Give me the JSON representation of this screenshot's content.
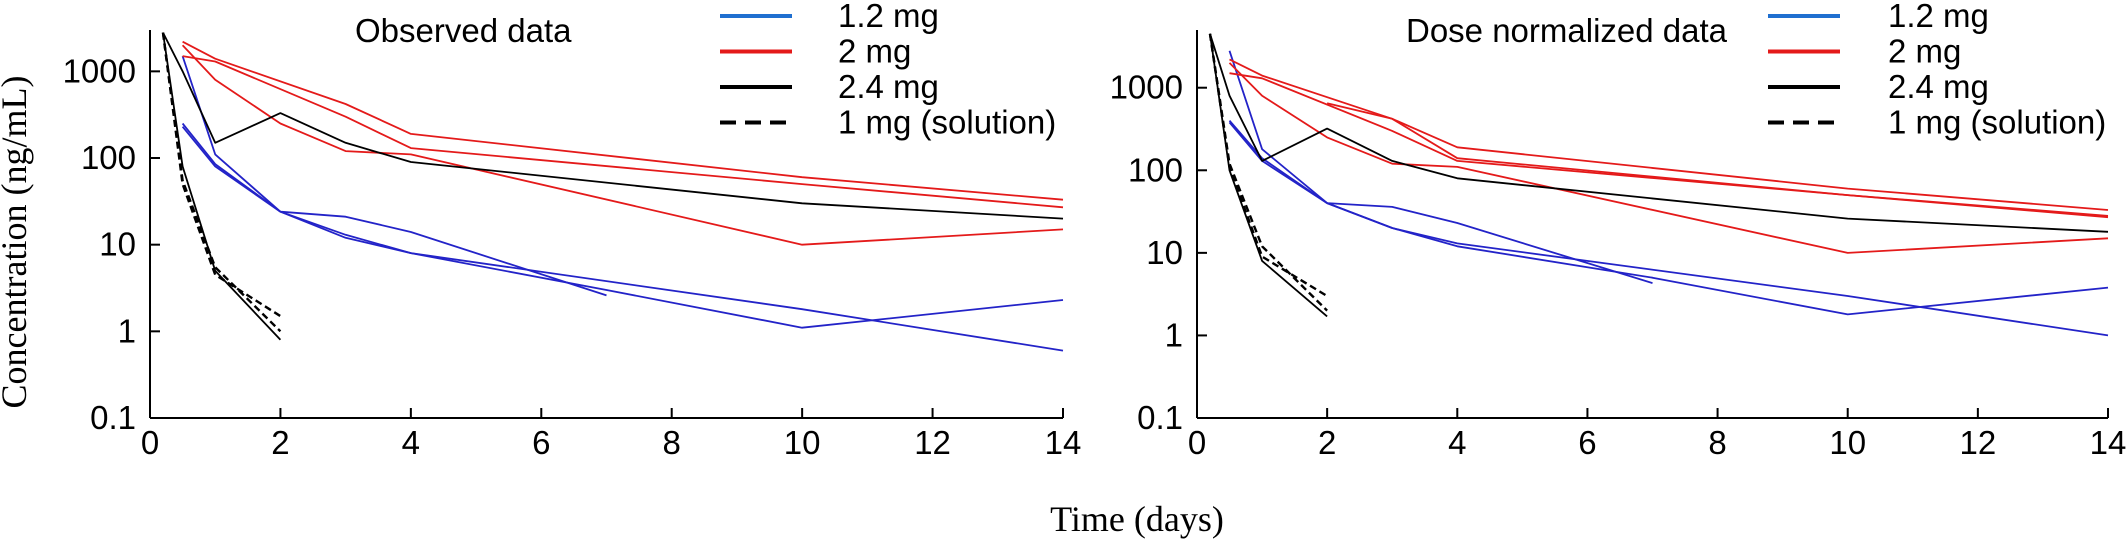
{
  "xlabel": "Time (days)",
  "ylabel": "Concentration (ng/mL)",
  "colors": {
    "blue": "#2323c8",
    "red": "#e41a1a",
    "black": "#000000",
    "legend_blue": "#1f6fd0"
  },
  "legend": [
    {
      "label": "1.2 mg",
      "color": "#1f6fd0",
      "dash": false
    },
    {
      "label": "2 mg",
      "color": "#e41a1a",
      "dash": false
    },
    {
      "label": "2.4 mg",
      "color": "#000000",
      "dash": false
    },
    {
      "label": "1 mg (solution)",
      "color": "#000000",
      "dash": true
    }
  ],
  "chart_data": [
    {
      "type": "line",
      "title": "Observed data",
      "xlabel": "Time (days)",
      "ylabel": "Concentration (ng/mL)",
      "xlim": [
        0,
        14
      ],
      "ylim": [
        0.1,
        3000
      ],
      "yscale": "log",
      "xticks": [
        "0",
        "2",
        "4",
        "6",
        "8",
        "10",
        "12",
        "14"
      ],
      "yticks": [
        "0.1",
        "1",
        "10",
        "100",
        "1000"
      ],
      "series": [
        {
          "name": "1.2 mg",
          "color": "#2323c8",
          "dash": false,
          "x": [
            0.5,
            1,
            2,
            3,
            4,
            7,
            10,
            14
          ],
          "y": [
            1500,
            110,
            24,
            13,
            8,
            3,
            1.1,
            2.3
          ]
        },
        {
          "name": "1.2 mg",
          "color": "#2323c8",
          "dash": false,
          "x": [
            0.5,
            1,
            2,
            3,
            4,
            7
          ],
          "y": [
            250,
            85,
            24,
            21,
            14,
            2.6
          ]
        },
        {
          "name": "1.2 mg",
          "color": "#2323c8",
          "dash": false,
          "x": [
            0.5,
            1,
            2,
            3,
            4,
            10,
            14
          ],
          "y": [
            230,
            80,
            24,
            12,
            8,
            1.8,
            0.6
          ]
        },
        {
          "name": "2 mg",
          "color": "#e41a1a",
          "dash": false,
          "x": [
            0.5,
            1,
            3,
            4,
            10,
            14
          ],
          "y": [
            2200,
            1400,
            420,
            190,
            60,
            33
          ]
        },
        {
          "name": "2 mg",
          "color": "#e41a1a",
          "dash": false,
          "x": [
            0.5,
            1,
            3,
            4,
            10,
            14
          ],
          "y": [
            1500,
            1300,
            300,
            130,
            50,
            27
          ]
        },
        {
          "name": "2 mg",
          "color": "#e41a1a",
          "dash": false,
          "x": [
            0.5,
            1,
            2,
            3,
            4,
            10,
            14
          ],
          "y": [
            2000,
            800,
            250,
            120,
            110,
            10,
            15
          ]
        },
        {
          "name": "2.4 mg",
          "color": "#000000",
          "dash": false,
          "x": [
            0.2,
            0.5,
            1,
            2,
            3,
            4,
            10,
            14
          ],
          "y": [
            2800,
            1000,
            150,
            330,
            150,
            90,
            30,
            20
          ]
        },
        {
          "name": "2.4 mg",
          "color": "#000000",
          "dash": false,
          "x": [
            0.2,
            0.5,
            1,
            2
          ],
          "y": [
            2800,
            80,
            5,
            0.8
          ]
        },
        {
          "name": "1 mg (solution)",
          "color": "#000000",
          "dash": true,
          "x": [
            0.2,
            0.5,
            1,
            2
          ],
          "y": [
            2800,
            50,
            4.5,
            1.5
          ]
        },
        {
          "name": "1 mg (solution)",
          "color": "#000000",
          "dash": true,
          "x": [
            0.2,
            0.5,
            1,
            2
          ],
          "y": [
            2800,
            55,
            5.5,
            1
          ]
        }
      ]
    },
    {
      "type": "line",
      "title": "Dose normalized data",
      "xlabel": "Time (days)",
      "ylabel": "",
      "xlim": [
        0,
        14
      ],
      "ylim": [
        0.1,
        5000
      ],
      "yscale": "log",
      "xticks": [
        "0",
        "2",
        "4",
        "6",
        "8",
        "10",
        "12",
        "14"
      ],
      "yticks": [
        "0.1",
        "1",
        "10",
        "100",
        "1000"
      ],
      "series": [
        {
          "name": "1.2 mg",
          "color": "#2323c8",
          "dash": false,
          "x": [
            0.5,
            1,
            2,
            3,
            4,
            7,
            10,
            14
          ],
          "y": [
            2800,
            180,
            40,
            20,
            12,
            5,
            1.8,
            3.8
          ]
        },
        {
          "name": "1.2 mg",
          "color": "#2323c8",
          "dash": false,
          "x": [
            0.5,
            1,
            2,
            3,
            4,
            7
          ],
          "y": [
            400,
            140,
            40,
            36,
            23,
            4.3
          ]
        },
        {
          "name": "1.2 mg",
          "color": "#2323c8",
          "dash": false,
          "x": [
            0.5,
            1,
            2,
            3,
            4,
            10,
            14
          ],
          "y": [
            380,
            130,
            40,
            20,
            13,
            3,
            1
          ]
        },
        {
          "name": "2 mg",
          "color": "#e41a1a",
          "dash": false,
          "x": [
            0.5,
            1,
            3,
            4,
            10,
            14
          ],
          "y": [
            2200,
            1400,
            420,
            190,
            60,
            33
          ]
        },
        {
          "name": "2 mg",
          "color": "#e41a1a",
          "dash": false,
          "x": [
            0.5,
            1,
            3,
            4,
            10,
            14
          ],
          "y": [
            1500,
            1300,
            300,
            130,
            50,
            27
          ]
        },
        {
          "name": "2 mg",
          "color": "#e41a1a",
          "dash": false,
          "x": [
            2,
            3,
            4,
            10,
            14
          ],
          "y": [
            650,
            420,
            140,
            50,
            28
          ]
        },
        {
          "name": "2 mg",
          "color": "#e41a1a",
          "dash": false,
          "x": [
            0.5,
            1,
            2,
            3,
            4,
            10,
            14
          ],
          "y": [
            2000,
            800,
            250,
            120,
            110,
            10,
            15
          ]
        },
        {
          "name": "2.4 mg",
          "color": "#000000",
          "dash": false,
          "x": [
            0.2,
            0.5,
            1,
            2,
            3,
            4,
            10,
            14
          ],
          "y": [
            4500,
            800,
            130,
            320,
            130,
            80,
            26,
            18
          ]
        },
        {
          "name": "2.4 mg",
          "color": "#000000",
          "dash": false,
          "x": [
            0.2,
            0.5,
            1,
            2
          ],
          "y": [
            4500,
            100,
            8,
            1.7
          ]
        },
        {
          "name": "1 mg (solution)",
          "color": "#000000",
          "dash": true,
          "x": [
            0.2,
            0.5,
            1,
            2
          ],
          "y": [
            4500,
            110,
            9,
            3
          ]
        },
        {
          "name": "1 mg (solution)",
          "color": "#000000",
          "dash": true,
          "x": [
            0.2,
            0.5,
            1,
            2
          ],
          "y": [
            4500,
            120,
            12,
            2
          ]
        }
      ]
    }
  ]
}
